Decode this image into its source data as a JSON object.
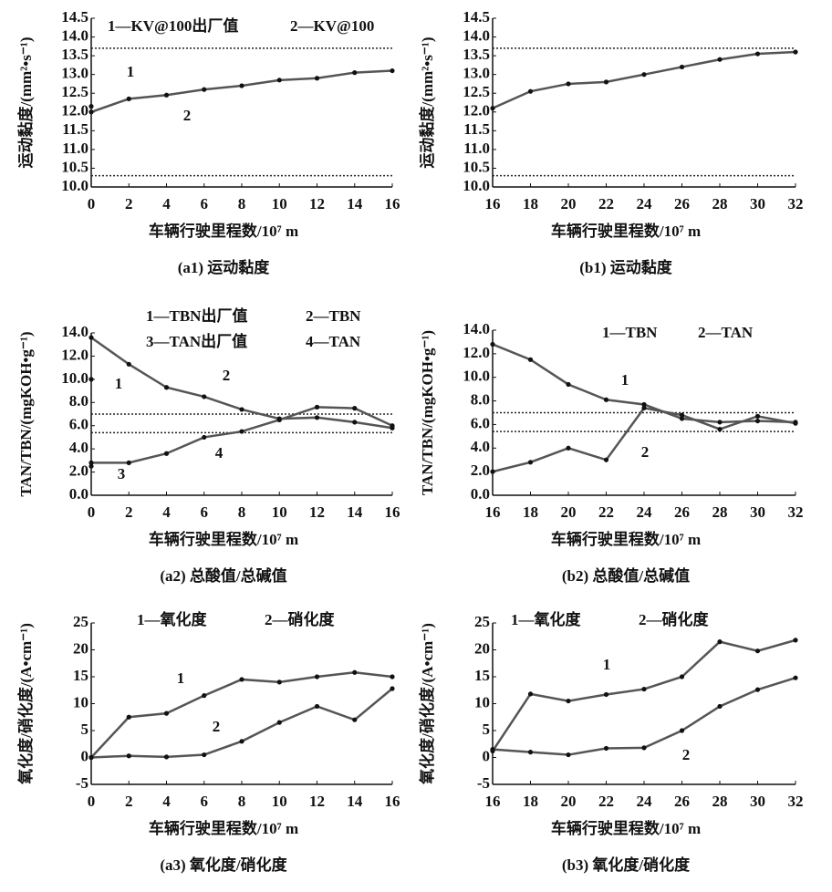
{
  "chart_data": [
    {
      "type": "line",
      "title": "(a1) 运动黏度",
      "x_label": "车辆行驶里程数/10⁷ m",
      "y_label": "运动黏度/(mm²•s⁻¹)",
      "x": [
        0,
        2,
        4,
        6,
        8,
        10,
        12,
        14,
        16
      ],
      "xlim": [
        0,
        16
      ],
      "xticks": [
        0,
        2,
        4,
        6,
        8,
        10,
        12,
        14,
        16
      ],
      "ylim": [
        10,
        14.5
      ],
      "yticks": [
        {
          "value": 10,
          "label": "10.0"
        },
        10.5,
        {
          "value": 11,
          "label": "11.0"
        },
        11.5,
        {
          "value": 12,
          "label": "12.0"
        },
        12.5,
        {
          "value": 13,
          "label": "13.0"
        },
        13.5,
        {
          "value": 14,
          "label": "14.0"
        },
        14.5
      ],
      "reference_lines": [
        13.7,
        10.3
      ],
      "series": [
        {
          "name": "1—KV@100出厂值",
          "color": "#555555",
          "values": [
            12.15,
            null,
            null,
            null,
            null,
            null,
            null,
            null,
            null
          ]
        },
        {
          "name": "2—KV@100",
          "color": "#555555",
          "values": [
            12.0,
            12.35,
            12.45,
            12.6,
            12.7,
            12.85,
            12.9,
            13.05,
            13.1
          ]
        }
      ],
      "annotations": [
        "1",
        "2"
      ]
    },
    {
      "type": "line",
      "title": "(b1) 运动黏度",
      "x_label": "车辆行驶里程数/10⁷ m",
      "y_label": "运动黏度/(mm²•s⁻¹)",
      "x": [
        16,
        18,
        20,
        22,
        24,
        26,
        28,
        30,
        32
      ],
      "xlim": [
        16,
        32
      ],
      "xticks": [
        16,
        18,
        20,
        22,
        24,
        26,
        28,
        30,
        32
      ],
      "ylim": [
        10,
        14.5
      ],
      "yticks": [
        {
          "value": 10,
          "label": "10.0"
        },
        10.5,
        {
          "value": 11,
          "label": "11.0"
        },
        11.5,
        {
          "value": 12,
          "label": "12.0"
        },
        12.5,
        {
          "value": 13,
          "label": "13.0"
        },
        13.5,
        {
          "value": 14,
          "label": "14.0"
        },
        14.5
      ],
      "reference_lines": [
        13.7,
        10.3
      ],
      "series": [
        {
          "color": "#555555",
          "values": [
            12.1,
            12.55,
            12.75,
            12.8,
            13.0,
            13.2,
            13.4,
            13.55,
            13.6
          ]
        }
      ],
      "annotations": []
    },
    {
      "type": "line",
      "title": "(a2) 总酸值/总碱值",
      "x_label": "车辆行驶里程数/10⁷ m",
      "y_label": "TAN/TBN/(mgKOH•g⁻¹)",
      "x": [
        0,
        2,
        4,
        6,
        8,
        10,
        12,
        14,
        16
      ],
      "xlim": [
        0,
        16
      ],
      "xticks": [
        0,
        2,
        4,
        6,
        8,
        10,
        12,
        14,
        16
      ],
      "ylim": [
        0,
        14
      ],
      "yticks": [
        {
          "value": 0,
          "label": "0.0"
        },
        {
          "value": 2,
          "label": "2.0"
        },
        {
          "value": 4,
          "label": "4.0"
        },
        {
          "value": 6,
          "label": "6.0"
        },
        {
          "value": 8,
          "label": "8.0"
        },
        {
          "value": 10,
          "label": "10.0"
        },
        {
          "value": 12,
          "label": "12.0"
        },
        {
          "value": 14,
          "label": "14.0"
        }
      ],
      "reference_lines": [
        7.0,
        5.4
      ],
      "series": [
        {
          "name": "1—TBN出厂值",
          "color": "#555555",
          "values": [
            10.0,
            null,
            null,
            null,
            null,
            null,
            null,
            null,
            null
          ]
        },
        {
          "name": "2—TBN",
          "color": "#555555",
          "values": [
            13.6,
            11.3,
            9.3,
            8.5,
            7.4,
            6.6,
            6.7,
            6.3,
            5.8
          ]
        },
        {
          "name": "3—TAN出厂值",
          "color": "#555555",
          "values": [
            2.5,
            null,
            null,
            null,
            null,
            null,
            null,
            null,
            null
          ]
        },
        {
          "name": "4—TAN",
          "color": "#555555",
          "values": [
            2.8,
            2.8,
            3.6,
            5.0,
            5.5,
            6.5,
            7.6,
            7.5,
            6.0
          ]
        }
      ],
      "annotations": [
        "1",
        "2",
        "3",
        "4"
      ]
    },
    {
      "type": "line",
      "title": "(b2) 总酸值/总碱值",
      "x_label": "车辆行驶里程数/10⁷ m",
      "y_label": "TAN/TBN/(mgKOH•g⁻¹)",
      "x": [
        16,
        18,
        20,
        22,
        24,
        26,
        28,
        30,
        32
      ],
      "xlim": [
        16,
        32
      ],
      "xticks": [
        16,
        18,
        20,
        22,
        24,
        26,
        28,
        30,
        32
      ],
      "ylim": [
        0,
        14
      ],
      "yticks": [
        {
          "value": 0,
          "label": "0.0"
        },
        {
          "value": 2,
          "label": "2.0"
        },
        {
          "value": 4,
          "label": "4.0"
        },
        {
          "value": 6,
          "label": "6.0"
        },
        {
          "value": 8,
          "label": "8.0"
        },
        {
          "value": 10,
          "label": "10.0"
        },
        {
          "value": 12,
          "label": "12.0"
        },
        {
          "value": 14,
          "label": "14.0"
        }
      ],
      "reference_lines": [
        7.0,
        5.4
      ],
      "series": [
        {
          "name": "1—TBN",
          "color": "#555555",
          "values": [
            12.8,
            11.5,
            9.4,
            8.1,
            7.7,
            6.5,
            6.2,
            6.3,
            6.2
          ]
        },
        {
          "name": "2—TAN",
          "color": "#555555",
          "values": [
            2.0,
            2.8,
            4.0,
            3.0,
            7.4,
            6.8,
            5.6,
            6.7,
            6.1
          ]
        }
      ],
      "annotations": [
        "1",
        "2"
      ]
    },
    {
      "type": "line",
      "title": "(a3) 氧化度/硝化度",
      "x_label": "车辆行驶里程数/10⁷ m",
      "y_label": "氧化度/硝化度/(A•cm⁻¹)",
      "x": [
        0,
        2,
        4,
        6,
        8,
        10,
        12,
        14,
        16
      ],
      "xlim": [
        0,
        16
      ],
      "xticks": [
        0,
        2,
        4,
        6,
        8,
        10,
        12,
        14,
        16
      ],
      "ylim": [
        -5,
        25
      ],
      "yticks": [
        -5,
        0,
        5,
        10,
        15,
        20,
        25
      ],
      "reference_lines": [],
      "series": [
        {
          "name": "1—氧化度",
          "color": "#555555",
          "values": [
            0,
            7.5,
            8.2,
            11.5,
            14.5,
            14,
            15,
            15.8,
            15
          ]
        },
        {
          "name": "2—硝化度",
          "color": "#555555",
          "values": [
            0,
            0.3,
            0.1,
            0.5,
            3,
            6.5,
            9.5,
            7,
            12.8
          ]
        }
      ],
      "annotations": [
        "1",
        "2"
      ]
    },
    {
      "type": "line",
      "title": "(b3) 氧化度/硝化度",
      "x_label": "车辆行驶里程数/10⁷ m",
      "y_label": "氧化度/硝化度/(A•cm⁻¹)",
      "x": [
        16,
        18,
        20,
        22,
        24,
        26,
        28,
        30,
        32
      ],
      "xlim": [
        16,
        32
      ],
      "xticks": [
        16,
        18,
        20,
        22,
        24,
        26,
        28,
        30,
        32
      ],
      "ylim": [
        -5,
        25
      ],
      "yticks": [
        -5,
        0,
        5,
        10,
        15,
        20,
        25
      ],
      "reference_lines": [],
      "series": [
        {
          "name": "1—氧化度",
          "color": "#555555",
          "values": [
            1.2,
            11.8,
            10.5,
            11.7,
            12.7,
            15,
            21.5,
            19.8,
            21.8
          ]
        },
        {
          "name": "2—硝化度",
          "color": "#555555",
          "values": [
            1.5,
            1.0,
            0.5,
            1.7,
            1.8,
            5.0,
            9.5,
            12.6,
            14.8
          ]
        }
      ],
      "annotations": [
        "1",
        "2"
      ]
    }
  ]
}
